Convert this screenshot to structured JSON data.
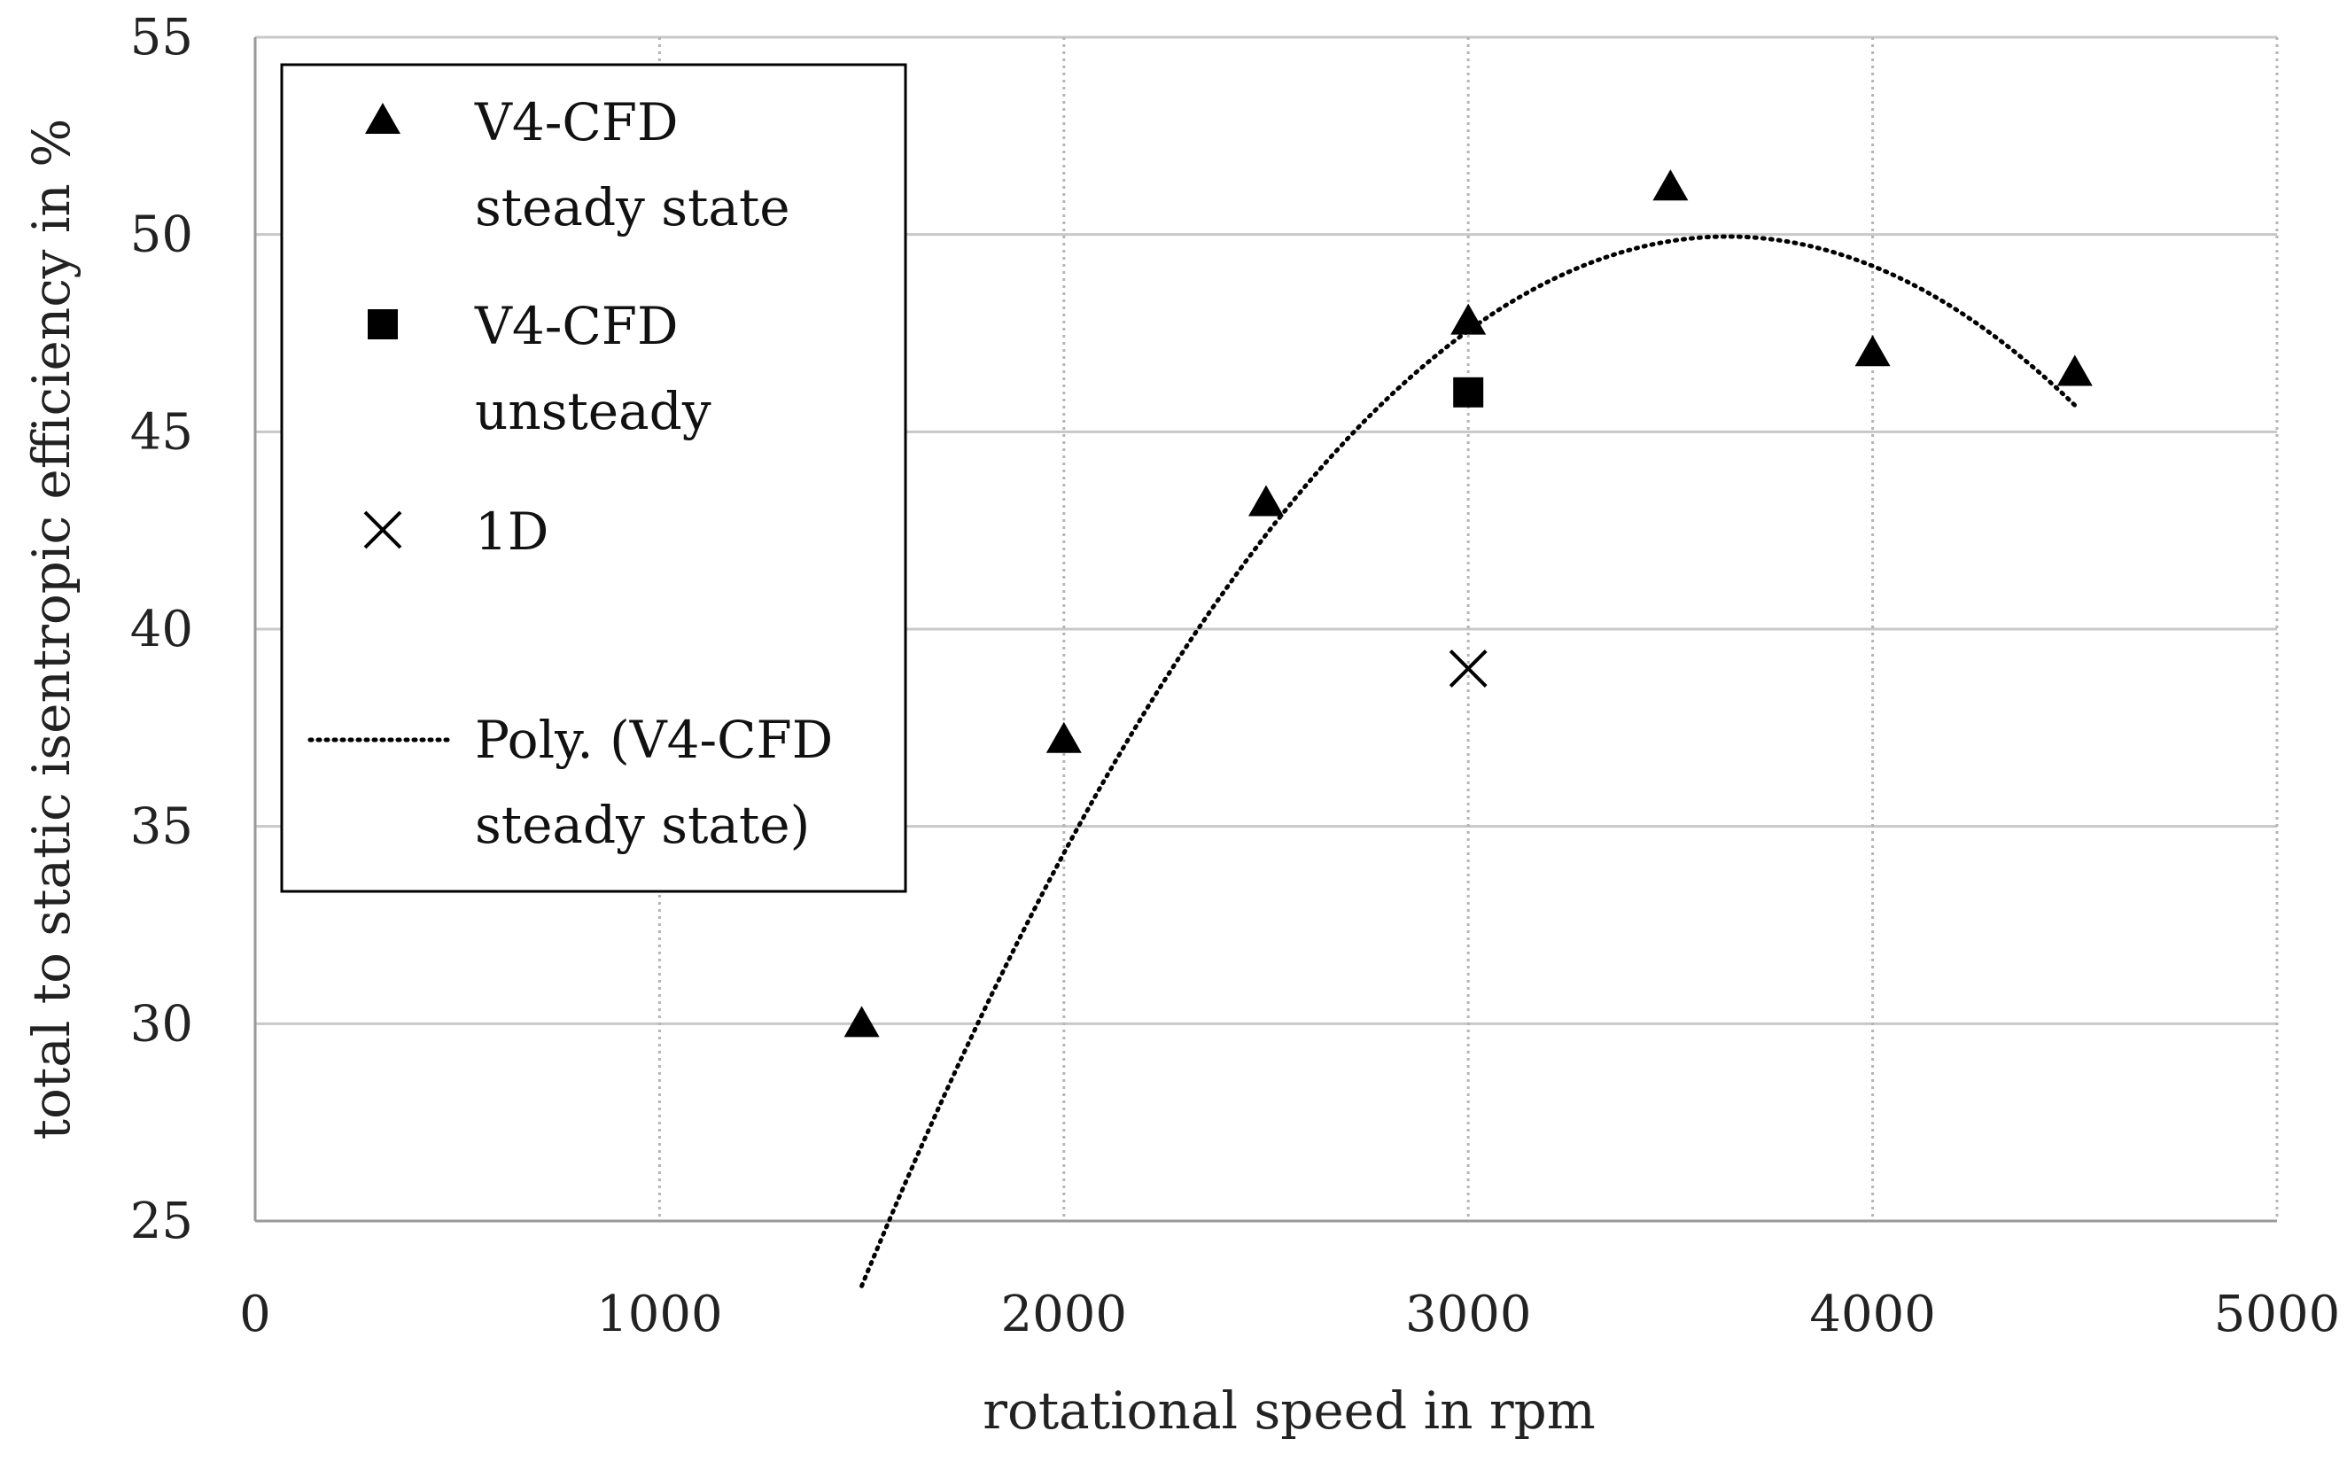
{
  "chart_data": {
    "type": "scatter",
    "xlabel": "rotational speed in rpm",
    "ylabel": "total to static isentropic efficiency in %",
    "xlim": [
      0,
      5000
    ],
    "ylim": [
      25,
      55
    ],
    "xticks": [
      0,
      1000,
      2000,
      3000,
      4000,
      5000
    ],
    "yticks": [
      25,
      30,
      35,
      40,
      45,
      50,
      55
    ],
    "grid": true,
    "legend_position": "top-left",
    "series": [
      {
        "name": "V4-CFD steady state",
        "legend_lines": [
          "V4-CFD",
          "steady state"
        ],
        "marker": "triangle",
        "points": [
          {
            "x": 1500,
            "y": 30.0
          },
          {
            "x": 2000,
            "y": 37.2
          },
          {
            "x": 2500,
            "y": 43.2
          },
          {
            "x": 3000,
            "y": 47.8
          },
          {
            "x": 3500,
            "y": 51.2
          },
          {
            "x": 4000,
            "y": 47.0
          },
          {
            "x": 4500,
            "y": 46.5
          }
        ]
      },
      {
        "name": "V4-CFD unsteady",
        "legend_lines": [
          "V4-CFD",
          "unsteady"
        ],
        "marker": "square",
        "points": [
          {
            "x": 3000,
            "y": 46.0
          }
        ]
      },
      {
        "name": "1D",
        "legend_lines": [
          "1D"
        ],
        "marker": "x",
        "points": [
          {
            "x": 3000,
            "y": 39.0
          }
        ]
      },
      {
        "name": "Poly. (V4-CFD steady state)",
        "legend_lines": [
          "Poly. (V4-CFD",
          "steady state)"
        ],
        "style": "dotted-line",
        "x_range": [
          1500,
          4500
        ],
        "coefficients": [
          -26.957,
          0.04224,
          -5.8e-06
        ]
      }
    ],
    "colors": {
      "marker": "#000000",
      "grid": "#c8c8c8",
      "axis": "#999999"
    }
  }
}
